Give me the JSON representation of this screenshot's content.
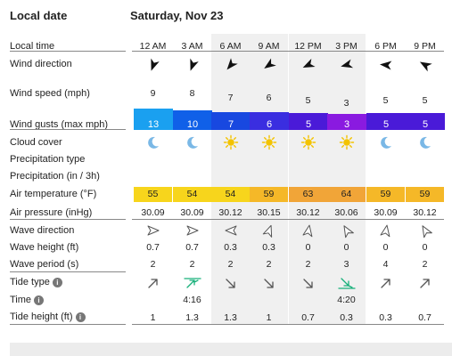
{
  "header": {
    "left_title": "Local date",
    "date": "Saturday, Nov 23"
  },
  "row_labels": {
    "local_time": "Local time",
    "wind_direction": "Wind direction",
    "wind_speed": "Wind speed (mph)",
    "wind_gusts": "Wind gusts (max mph)",
    "cloud_cover": "Cloud cover",
    "precip_type": "Precipitation type",
    "precip_amount": "Precipitation (in / 3h)",
    "air_temp": "Air temperature (°F)",
    "air_pressure": "Air pressure (inHg)",
    "wave_direction": "Wave direction",
    "wave_height": "Wave height (ft)",
    "wave_period": "Wave period (s)",
    "tide_type": "Tide type",
    "time": "Time",
    "tide_height": "Tide height (ft)"
  },
  "info_glyph": "i",
  "hours": [
    {
      "time": "12 AM",
      "wind_speed": "9",
      "gust": "13",
      "gust_color": "#1aa0f0",
      "gust_level": 13,
      "cloud": "moon-icon",
      "temp": "55",
      "temp_color": "#f7d51c",
      "pressure": "30.09",
      "wave_height": "0.7",
      "wave_period": "2",
      "tide_type": "rising-arrow-icon",
      "tide_time": "",
      "tide_height": "1"
    },
    {
      "time": "3 AM",
      "wind_speed": "8",
      "gust": "10",
      "gust_color": "#1060e8",
      "gust_level": 10,
      "cloud": "moon-icon",
      "temp": "54",
      "temp_color": "#f7d51c",
      "pressure": "30.09",
      "wave_height": "0.7",
      "wave_period": "2",
      "tide_type": "high-tide-icon",
      "tide_time": "4:16",
      "tide_height": "1.3"
    },
    {
      "time": "6 AM",
      "wind_speed": "7",
      "gust": "7",
      "gust_color": "#1848e0",
      "gust_level": 7,
      "cloud": "sun-icon",
      "temp": "54",
      "temp_color": "#f7d51c",
      "pressure": "30.12",
      "wave_height": "0.3",
      "wave_period": "2",
      "tide_type": "falling-arrow-icon",
      "tide_time": "",
      "tide_height": "1.3"
    },
    {
      "time": "9 AM",
      "wind_speed": "6",
      "gust": "6",
      "gust_color": "#3a2ee0",
      "gust_level": 6,
      "cloud": "sun-icon",
      "temp": "59",
      "temp_color": "#f5b828",
      "pressure": "30.15",
      "wave_height": "0.3",
      "wave_period": "2",
      "tide_type": "falling-arrow-icon",
      "tide_time": "",
      "tide_height": "1"
    },
    {
      "time": "12 PM",
      "wind_speed": "5",
      "gust": "5",
      "gust_color": "#4a1ad8",
      "gust_level": 5,
      "cloud": "sun-icon",
      "temp": "63",
      "temp_color": "#f1a538",
      "pressure": "30.12",
      "wave_height": "0",
      "wave_period": "2",
      "tide_type": "falling-arrow-icon",
      "tide_time": "",
      "tide_height": "0.7"
    },
    {
      "time": "3 PM",
      "wind_speed": "3",
      "gust": "3",
      "gust_color": "#8a1ae0",
      "gust_level": 3,
      "cloud": "sun-icon",
      "temp": "64",
      "temp_color": "#f1a538",
      "pressure": "30.06",
      "wave_height": "0",
      "wave_period": "3",
      "tide_type": "low-tide-icon",
      "tide_time": "4:20",
      "tide_height": "0.3"
    },
    {
      "time": "6 PM",
      "wind_speed": "5",
      "gust": "5",
      "gust_color": "#4a1ad8",
      "gust_level": 5,
      "cloud": "moon-icon",
      "temp": "59",
      "temp_color": "#f5b828",
      "pressure": "30.09",
      "wave_height": "0",
      "wave_period": "4",
      "tide_type": "rising-arrow-icon",
      "tide_time": "",
      "tide_height": "0.3"
    },
    {
      "time": "9 PM",
      "wind_speed": "5",
      "gust": "5",
      "gust_color": "#4a1ad8",
      "gust_level": 5,
      "cloud": "moon-icon",
      "temp": "59",
      "temp_color": "#f5b828",
      "pressure": "30.12",
      "wave_height": "0",
      "wave_period": "2",
      "tide_type": "rising-arrow-icon",
      "tide_time": "",
      "tide_height": "0.7"
    }
  ],
  "shaded_columns": [
    2,
    3,
    4,
    5
  ],
  "colors": {
    "wind_arrow": "#111",
    "sun": "#f3c300",
    "moon": "#7ab8e6",
    "tide_arrow": "#555",
    "tide_event": "#17b07a"
  }
}
